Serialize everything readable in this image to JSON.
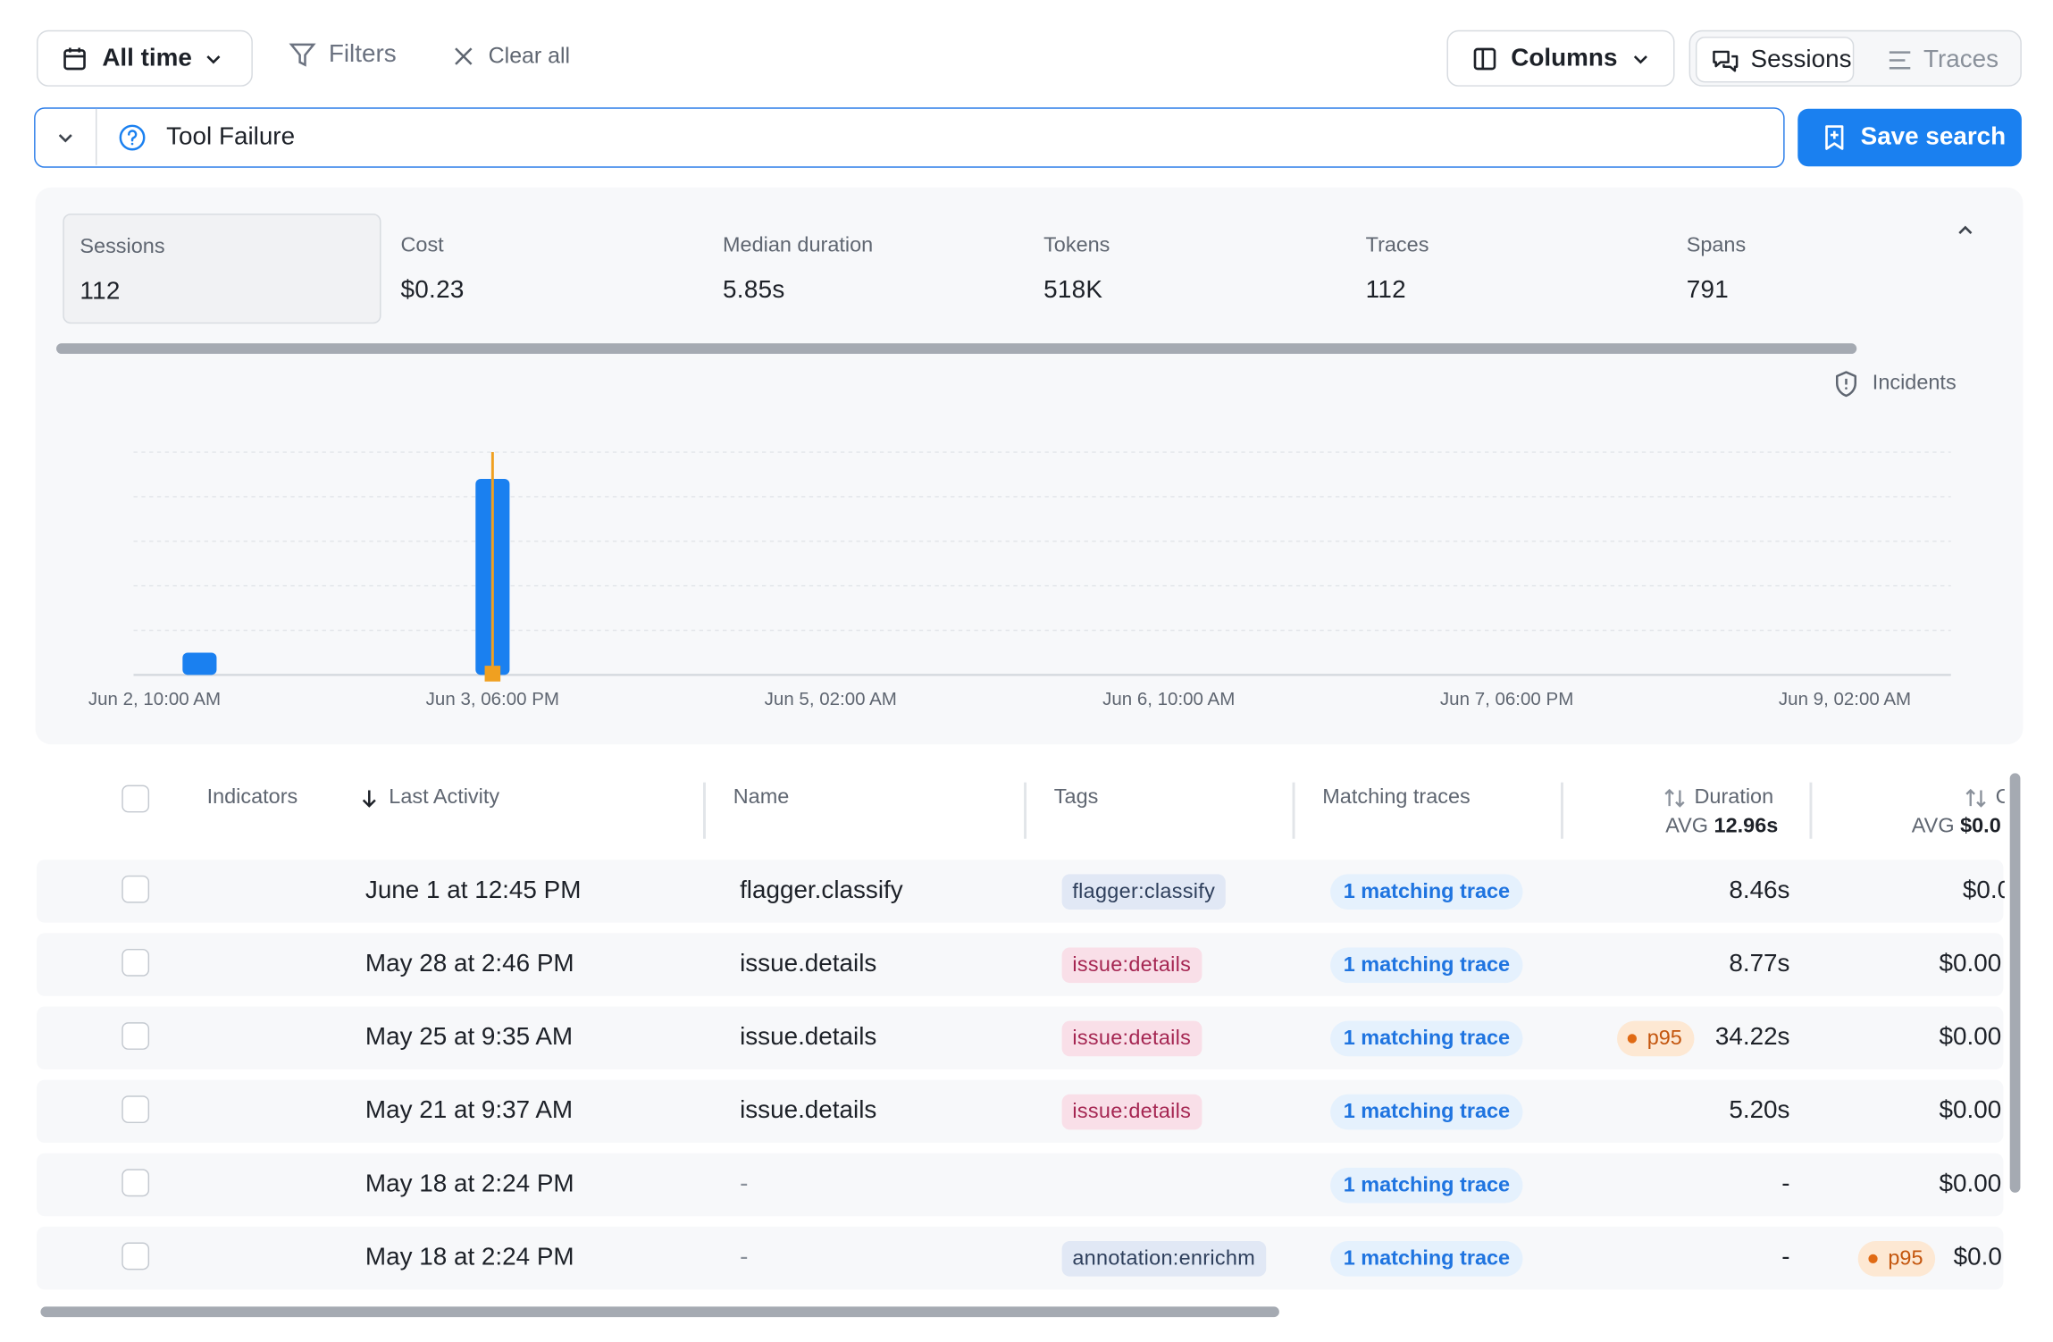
{
  "toolbar": {
    "time_range": "All time",
    "filters_label": "Filters",
    "clear_all_label": "Clear all",
    "columns_label": "Columns",
    "view_sessions_label": "Sessions",
    "view_traces_label": "Traces",
    "active_view": "Sessions"
  },
  "search": {
    "value": "Tool Failure",
    "save_label": "Save search"
  },
  "stats": [
    {
      "label": "Sessions",
      "value": "112",
      "selected": true
    },
    {
      "label": "Cost",
      "value": "$0.23"
    },
    {
      "label": "Median duration",
      "value": "5.85s"
    },
    {
      "label": "Tokens",
      "value": "518K"
    },
    {
      "label": "Traces",
      "value": "112"
    },
    {
      "label": "Spans",
      "value": "791"
    }
  ],
  "incidents_label": "Incidents",
  "chart_data": {
    "type": "bar",
    "x_ticks": [
      "Jun 2, 10:00 AM",
      "Jun 3, 06:00 PM",
      "Jun 5, 02:00 AM",
      "Jun 6, 10:00 AM",
      "Jun 7, 06:00 PM",
      "Jun 9, 02:00 AM"
    ],
    "bars": [
      {
        "x": "Jun 2, 2:00 PM",
        "value": 10
      },
      {
        "x": "Jun 3, 4:00 PM",
        "value": 88
      }
    ],
    "incident_marker_x": "Jun 3, 4:00 PM",
    "ylim": [
      0,
      100
    ],
    "grid": true,
    "bar_color": "#1a80f0",
    "incident_color": "#f0a020"
  },
  "table": {
    "headers": {
      "indicators": "Indicators",
      "last_activity": "Last Activity",
      "name": "Name",
      "tags": "Tags",
      "matching_traces": "Matching traces",
      "duration": "Duration",
      "duration_avg_label": "AVG",
      "duration_avg": "12.96s",
      "cost_partial": "C",
      "cost_avg_label": "AVG",
      "cost_avg": "$0.0"
    },
    "rows": [
      {
        "last_activity": "June 1 at 12:45 PM",
        "name": "flagger.classify",
        "tag": "flagger:classify",
        "tag_style": "blue",
        "matching": "1 matching trace",
        "duration": "8.46s",
        "duration_p95": false,
        "cost": "$0.0",
        "cost_p95": false
      },
      {
        "last_activity": "May 28 at 2:46 PM",
        "name": "issue.details",
        "tag": "issue:details",
        "tag_style": "pink",
        "matching": "1 matching trace",
        "duration": "8.77s",
        "duration_p95": false,
        "cost": "$0.00",
        "cost_p95": false
      },
      {
        "last_activity": "May 25 at 9:35 AM",
        "name": "issue.details",
        "tag": "issue:details",
        "tag_style": "pink",
        "matching": "1 matching trace",
        "duration": "34.22s",
        "duration_p95": true,
        "cost": "$0.00",
        "cost_p95": false
      },
      {
        "last_activity": "May 21 at 9:37 AM",
        "name": "issue.details",
        "tag": "issue:details",
        "tag_style": "pink",
        "matching": "1 matching trace",
        "duration": "5.20s",
        "duration_p95": false,
        "cost": "$0.00",
        "cost_p95": false
      },
      {
        "last_activity": "May 18 at 2:24 PM",
        "name": "-",
        "tag": "",
        "tag_style": "",
        "matching": "1 matching trace",
        "duration": "-",
        "duration_p95": false,
        "cost": "$0.00",
        "cost_p95": false
      },
      {
        "last_activity": "May 18 at 2:24 PM",
        "name": "-",
        "tag": "annotation:enrichm",
        "tag_style": "slate",
        "matching": "1 matching trace",
        "duration": "-",
        "duration_p95": false,
        "cost": "$0.0",
        "cost_p95": true
      }
    ],
    "p95_label": "p95"
  }
}
